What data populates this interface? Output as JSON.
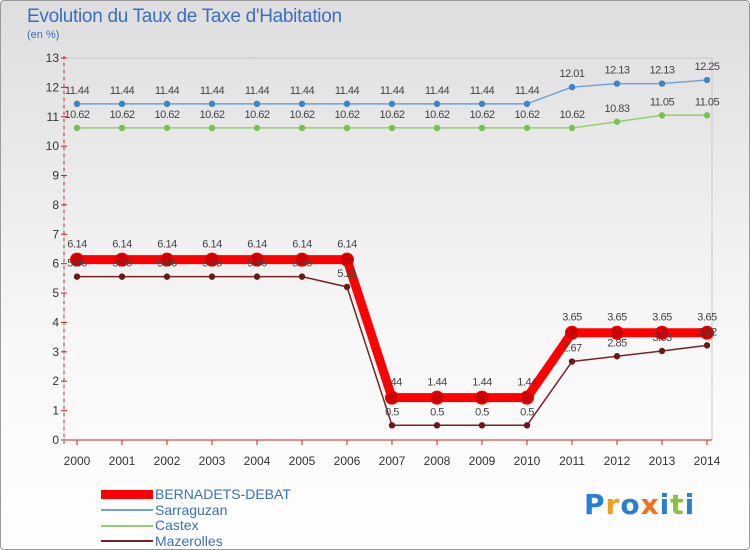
{
  "title": "Evolution du Taux de Taxe d'Habitation",
  "subtitle": "(en %)",
  "logo": "Proxiti",
  "chart_data": {
    "type": "line",
    "x": [
      "2000",
      "2001",
      "2002",
      "2003",
      "2004",
      "2005",
      "2006",
      "2007",
      "2008",
      "2009",
      "2010",
      "2011",
      "2012",
      "2013",
      "2014"
    ],
    "ylim": [
      0,
      13
    ],
    "yticks": [
      0,
      1,
      2,
      3,
      4,
      5,
      6,
      7,
      8,
      9,
      10,
      11,
      12,
      13
    ],
    "grid": false,
    "legend_position": "bottom-left",
    "series": [
      {
        "name": "BERNADETS-DEBAT",
        "color": "#ff0000",
        "point_color": "#cc0000",
        "width": 9,
        "labels": true,
        "values": [
          6.14,
          6.14,
          6.14,
          6.14,
          6.14,
          6.14,
          6.14,
          1.44,
          1.44,
          1.44,
          1.44,
          3.65,
          3.65,
          3.65,
          3.65
        ]
      },
      {
        "name": "Sarraguzan",
        "color": "#6fa3d8",
        "point_color": "#3a84c8",
        "width": 1.5,
        "labels": true,
        "values": [
          11.44,
          11.44,
          11.44,
          11.44,
          11.44,
          11.44,
          11.44,
          11.44,
          11.44,
          11.44,
          11.44,
          12.01,
          12.13,
          12.13,
          12.25
        ]
      },
      {
        "name": "Castex",
        "color": "#8fd16a",
        "point_color": "#78c24f",
        "width": 1.5,
        "labels": true,
        "values": [
          10.62,
          10.62,
          10.62,
          10.62,
          10.62,
          10.62,
          10.62,
          10.62,
          10.62,
          10.62,
          10.62,
          10.62,
          10.83,
          11.05,
          11.05
        ]
      },
      {
        "name": "Mazerolles",
        "color": "#7b2222",
        "point_color": "#6a1818",
        "width": 1.5,
        "labels": true,
        "values": [
          5.56,
          5.56,
          5.56,
          5.56,
          5.56,
          5.56,
          5.21,
          0.5,
          0.5,
          0.5,
          0.5,
          2.67,
          2.85,
          3.03,
          3.22
        ]
      }
    ],
    "point_label_text": [
      [
        "6.14",
        "6.14",
        "6.14",
        "6.14",
        "6.14",
        "6.14",
        "6.14",
        "1.44",
        "1.44",
        "1.44",
        "1.44",
        "3.65",
        "3.65",
        "3.65",
        "3.65"
      ],
      [
        "11.44",
        "11.44",
        "11.44",
        "11.44",
        "11.44",
        "11.44",
        "11.44",
        "11.44",
        "11.44",
        "11.44",
        "11.44",
        "12.01",
        "12.13",
        "12.13",
        "12.25"
      ],
      [
        "10.62",
        "10.62",
        "10.62",
        "10.62",
        "10.62",
        "10.62",
        "10.62",
        "10.62",
        "10.62",
        "10.62",
        "10.62",
        "10.62",
        "10.83",
        "11.05",
        "11.05"
      ],
      [
        "5.56",
        "5.56",
        "5.56",
        "5.56",
        "5.56",
        "5.56",
        "5.21",
        "0.5",
        "0.5",
        "0.5",
        "0.5",
        "2.67",
        "2.85",
        "3.03",
        "3.22"
      ]
    ]
  },
  "legend": [
    "BERNADETS-DEBAT",
    "Sarraguzan",
    "Castex",
    "Mazerolles"
  ]
}
